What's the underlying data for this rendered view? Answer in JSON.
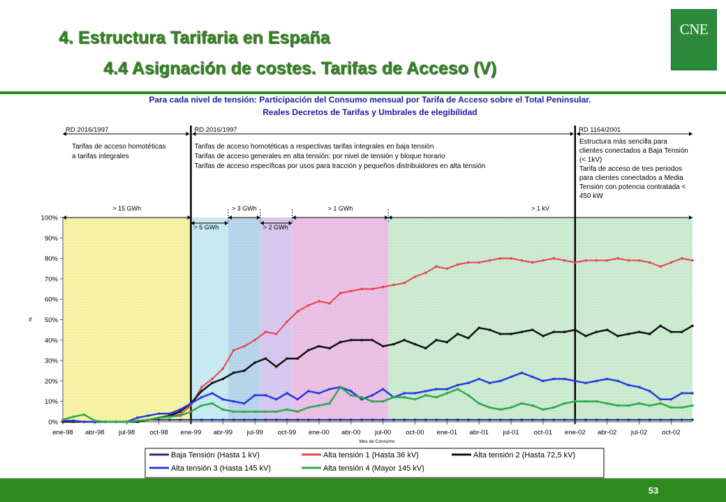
{
  "slide": {
    "title_line1": "4. Estructura Tarifaria en España",
    "title_line2": "4.4 Asignación de costes. Tarifas de Acceso (V)",
    "logo_text": "CNE",
    "page_number": "53",
    "accent_color": "#2f8a1d"
  },
  "annotations": {
    "rd_labels": [
      "RD 2016/1997",
      "RD 2016/1997",
      "RD 1164/2001"
    ],
    "block1": [
      "Tarifas de acceso homotéticas",
      "a tarifas integrales"
    ],
    "block2": [
      "Tarifas de acceso homotéticas a respectivas tarifas integrales en baja tensión",
      "Tarifas de acceso generales en alta tensión:  por nivel de tensión y bloque horario",
      "Tarifas de acceso específicas por usos para tracción y pequeños distribuidores en alta tensión"
    ],
    "block3": [
      "Estructura más sencilla para",
      "clientes conectados a Baja Tensión",
      "(< 1kV)",
      "Tarifa de acceso de tres periodos",
      "para clientes conectados a Media",
      "Tensión con potencia contratada <",
      "450 kW"
    ],
    "thresholds_top": [
      "> 15 GWh",
      "> 3 GWh",
      "> 1 GWh",
      "> 1 kV"
    ],
    "thresholds_bottom": [
      "> 5 GWh",
      "> 2 GWh"
    ]
  },
  "chart_data": {
    "type": "line",
    "title": "Para cada nivel de tensión: Participación del Consumo mensual por Tarifa de Acceso sobre el Total Peninsular.",
    "subtitle": "Reales Decretos de Tarifas y Umbrales de elegibilidad",
    "xlabel": "Mes de Consumo",
    "ylabel": "%",
    "ylim": [
      0,
      100
    ],
    "yticks": [
      "0%",
      "10%",
      "20%",
      "30%",
      "40%",
      "50%",
      "60%",
      "70%",
      "80%",
      "90%",
      "100%"
    ],
    "x_ticks": [
      "ene-98",
      "abr-98",
      "jul-98",
      "oct-98",
      "ene-99",
      "abr-99",
      "jul-99",
      "oct-99",
      "ene-00",
      "abr-00",
      "jul-00",
      "oct-00",
      "ene-01",
      "abr-01",
      "jul-01",
      "oct-01",
      "ene-02",
      "abr-02",
      "jul-02",
      "oct-02"
    ],
    "x": [
      "ene-98",
      "feb-98",
      "mar-98",
      "abr-98",
      "may-98",
      "jun-98",
      "jul-98",
      "ago-98",
      "sep-98",
      "oct-98",
      "nov-98",
      "dic-98",
      "ene-99",
      "feb-99",
      "mar-99",
      "abr-99",
      "may-99",
      "jun-99",
      "jul-99",
      "ago-99",
      "sep-99",
      "oct-99",
      "nov-99",
      "dic-99",
      "ene-00",
      "feb-00",
      "mar-00",
      "abr-00",
      "may-00",
      "jun-00",
      "jul-00",
      "ago-00",
      "sep-00",
      "oct-00",
      "nov-00",
      "dic-00",
      "ene-01",
      "feb-01",
      "mar-01",
      "abr-01",
      "may-01",
      "jun-01",
      "jul-01",
      "ago-01",
      "sep-01",
      "oct-01",
      "nov-01",
      "dic-01",
      "ene-02",
      "feb-02",
      "mar-02",
      "abr-02",
      "may-02",
      "jun-02",
      "jul-02",
      "ago-02",
      "sep-02",
      "oct-02",
      "nov-02",
      "dic-02"
    ],
    "series": [
      {
        "name": "Baja Tensión (Hasta 1 kV)",
        "color": "#1f2f8a",
        "width": 2,
        "values": [
          0.5,
          0.5,
          0,
          0,
          0,
          0,
          0,
          0,
          1,
          1,
          1,
          1,
          1,
          1,
          1,
          1,
          1,
          1,
          1,
          1,
          1,
          1,
          1,
          1,
          1,
          1,
          1,
          1,
          1,
          1,
          1,
          1,
          1,
          1,
          1,
          1,
          1,
          1,
          1,
          1,
          1,
          1,
          1,
          1,
          1,
          1,
          1,
          1,
          1,
          1,
          1,
          1,
          1,
          1,
          1,
          1,
          1,
          1,
          1,
          1
        ]
      },
      {
        "name": "Alta tensión 1 (Hasta 36 kV)",
        "color": "#e8424a",
        "width": 2,
        "values": [
          0,
          0,
          0,
          0,
          0,
          0,
          0,
          0.5,
          1,
          2,
          3,
          3.5,
          8,
          17,
          21,
          26,
          35,
          37,
          40,
          44,
          43,
          49,
          54,
          57,
          59,
          58,
          63,
          64,
          65,
          65,
          66,
          67,
          68,
          71,
          73,
          76,
          75,
          77,
          78,
          78,
          79,
          80,
          80,
          79,
          78,
          79,
          80,
          79,
          78,
          79,
          79,
          79,
          80,
          79,
          79,
          78,
          76,
          78,
          80,
          79
        ]
      },
      {
        "name": "Alta tensión 2 (Hasta 72,5 kV)",
        "color": "#111111",
        "width": 2.5,
        "values": [
          0,
          0,
          0,
          0,
          0,
          0,
          0,
          0,
          1,
          2,
          3,
          5,
          9,
          15,
          19,
          21,
          24,
          25,
          29,
          31,
          27,
          31,
          31,
          35,
          37,
          36,
          39,
          40,
          40,
          40,
          37,
          38,
          40,
          38,
          36,
          40,
          39,
          43,
          41,
          46,
          45,
          43,
          43,
          44,
          45,
          42,
          44,
          44,
          45,
          42,
          44,
          45,
          42,
          43,
          44,
          43,
          47,
          44,
          44,
          47
        ]
      },
      {
        "name": "Alta tensión 3 (Hasta 145 kV)",
        "color": "#2538e0",
        "width": 2.5,
        "values": [
          0.5,
          0.5,
          0,
          0,
          0,
          0,
          0,
          2,
          3,
          4,
          4,
          6,
          9,
          12,
          14,
          11,
          10,
          9,
          13,
          13,
          11,
          14,
          11,
          15,
          14,
          16,
          17,
          15,
          11,
          13,
          16,
          12,
          14,
          14,
          15,
          16,
          16,
          18,
          19,
          21,
          19,
          20,
          22,
          24,
          22,
          20,
          21,
          21,
          20,
          19,
          20,
          21,
          20,
          18,
          17,
          15,
          11,
          11,
          14,
          14
        ]
      },
      {
        "name": "Alta tensión 4 (Mayor 145 kV)",
        "color": "#2fa84a",
        "width": 2.5,
        "values": [
          1,
          2.5,
          3.5,
          0.5,
          0,
          0,
          0,
          0.5,
          1,
          2,
          2.5,
          3,
          5,
          8,
          9,
          6,
          5,
          5,
          5,
          5,
          5,
          6,
          5,
          7,
          8,
          9,
          17,
          13,
          12,
          10,
          10,
          12,
          12,
          11,
          13,
          12,
          14,
          16,
          13,
          9,
          7,
          6,
          7,
          9,
          8,
          6,
          7,
          9,
          10,
          10,
          10,
          9,
          8,
          8,
          9,
          8,
          9,
          7,
          7,
          8
        ]
      }
    ],
    "regions": [
      {
        "label": "> 15 GWh",
        "from": 0,
        "to": 12,
        "color": "#f7f4a6"
      },
      {
        "label": "> 5 GWh",
        "from": 12,
        "to": 15.5,
        "color": "#c9ecf4"
      },
      {
        "label": "> 3 GWh",
        "from": 15.5,
        "to": 18.5,
        "color": "#b8d6ec"
      },
      {
        "label": "> 2 GWh",
        "from": 18.5,
        "to": 21.5,
        "color": "#d8c9f0"
      },
      {
        "label": "> 1 GWh",
        "from": 21.5,
        "to": 30.5,
        "color": "#ecc1e6"
      },
      {
        "label": "> 1 kV",
        "from": 30.5,
        "to": 59.5,
        "color": "#cdecd2"
      }
    ],
    "legend_placement": "bottom",
    "grid": false
  }
}
